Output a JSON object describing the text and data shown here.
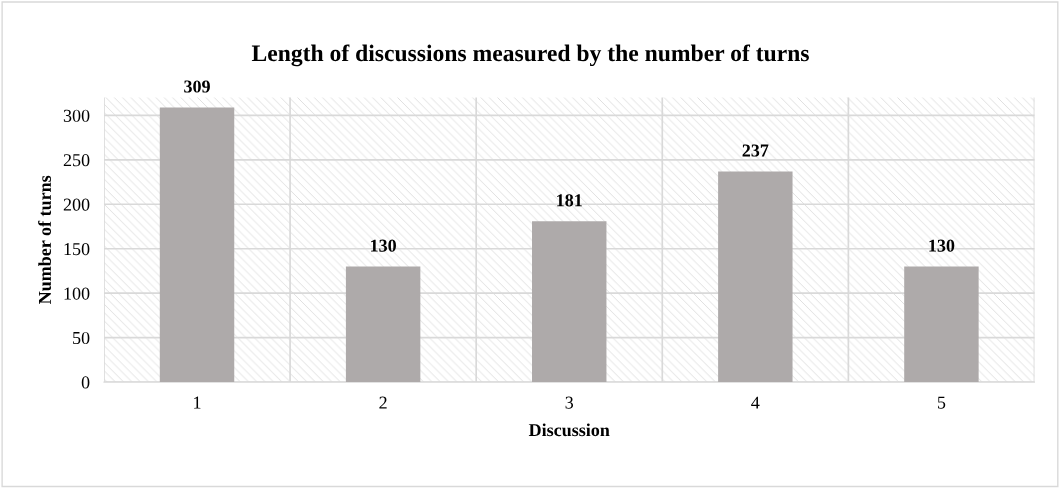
{
  "chart_data": {
    "type": "bar",
    "title": "Length of discussions measured by the number of turns",
    "xlabel": "Discussion",
    "ylabel": "Number of turns",
    "categories": [
      "1",
      "2",
      "3",
      "4",
      "5"
    ],
    "values": [
      309,
      130,
      181,
      237,
      130
    ],
    "color": "#aeaaaa",
    "ylim": [
      0,
      320
    ],
    "yticks": [
      0,
      50,
      100,
      150,
      200,
      250,
      300
    ],
    "grid": true,
    "data_labels": true
  }
}
